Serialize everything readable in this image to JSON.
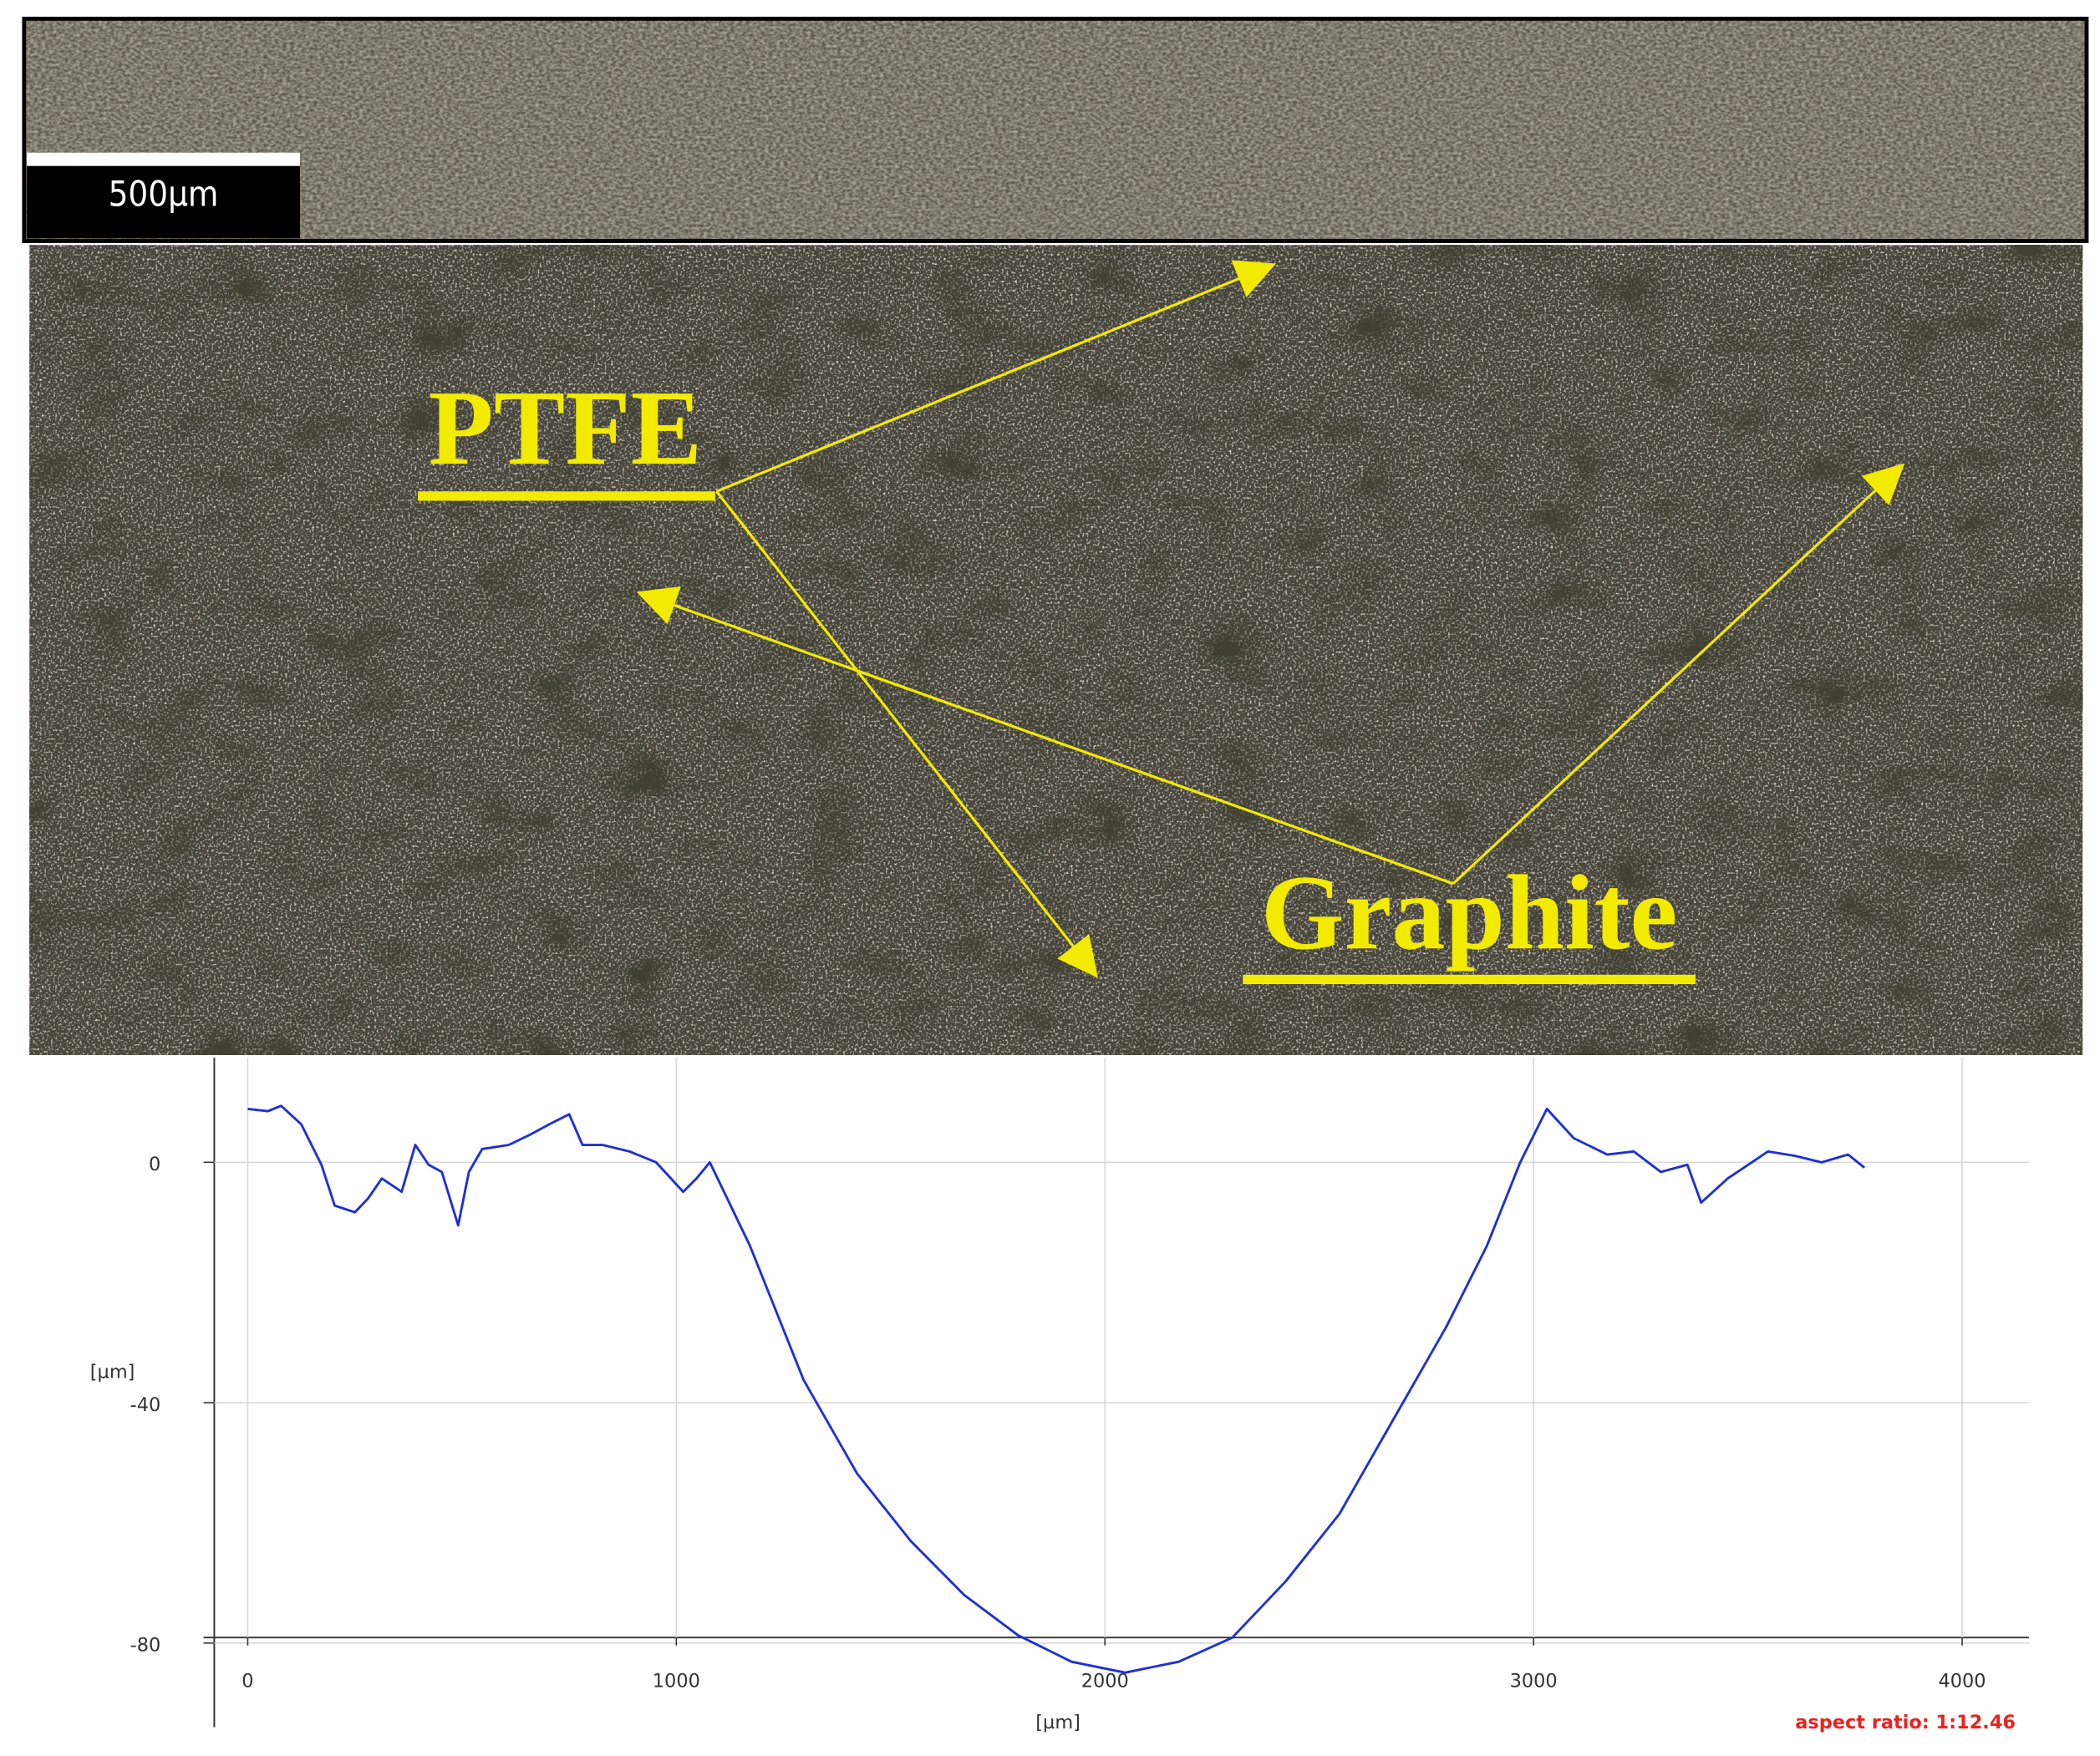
{
  "figure": {
    "scale_bar": "500µm",
    "label_1": "PTFE",
    "label_2": "Graphite"
  },
  "chart_data": {
    "type": "line",
    "xlabel": "[µm]",
    "ylabel": "[µm]",
    "annotation": "aspect ratio: 1:12.46",
    "x": [
      0,
      47,
      78,
      125,
      172,
      203,
      250,
      281,
      313,
      359,
      391,
      422,
      453,
      491,
      516,
      547,
      609,
      656,
      703,
      750,
      781,
      828,
      891,
      953,
      1016,
      1047,
      1078,
      1172,
      1297,
      1422,
      1547,
      1672,
      1797,
      1922,
      2047,
      2172,
      2297,
      2422,
      2547,
      2672,
      2797,
      2891,
      2969,
      3031,
      3094,
      3172,
      3234,
      3297,
      3359,
      3391,
      3453,
      3547,
      3609,
      3672,
      3734,
      3772
    ],
    "series": [
      {
        "color": "#1f2fd8",
        "values": [
          8.9,
          8.5,
          9.4,
          6.3,
          -0.4,
          -7.2,
          -8.3,
          -6.0,
          -2.7,
          -4.9,
          2.9,
          -0.4,
          -1.6,
          -10.5,
          -1.6,
          2.2,
          2.9,
          4.5,
          6.3,
          8.0,
          2.9,
          2.9,
          1.8,
          0,
          -4.9,
          -2.7,
          0,
          -13.9,
          -36.2,
          -51.8,
          -63.0,
          -72.0,
          -78.7,
          -83.1,
          -84.9,
          -83.1,
          -79.1,
          -69.7,
          -58.5,
          -42.9,
          -27.3,
          -13.9,
          0,
          8.9,
          4.0,
          1.3,
          1.8,
          -1.6,
          -0.4,
          -6.7,
          -2.7,
          1.8,
          1.1,
          0,
          1.3,
          -0.9
        ]
      }
    ],
    "xlim": [
      -78,
      4156
    ],
    "ylim": [
      -94,
      17.4
    ],
    "xticks": [
      0,
      1000,
      2000,
      3000,
      4000
    ],
    "yticks": [
      0,
      -40,
      -80
    ],
    "grid": true
  }
}
